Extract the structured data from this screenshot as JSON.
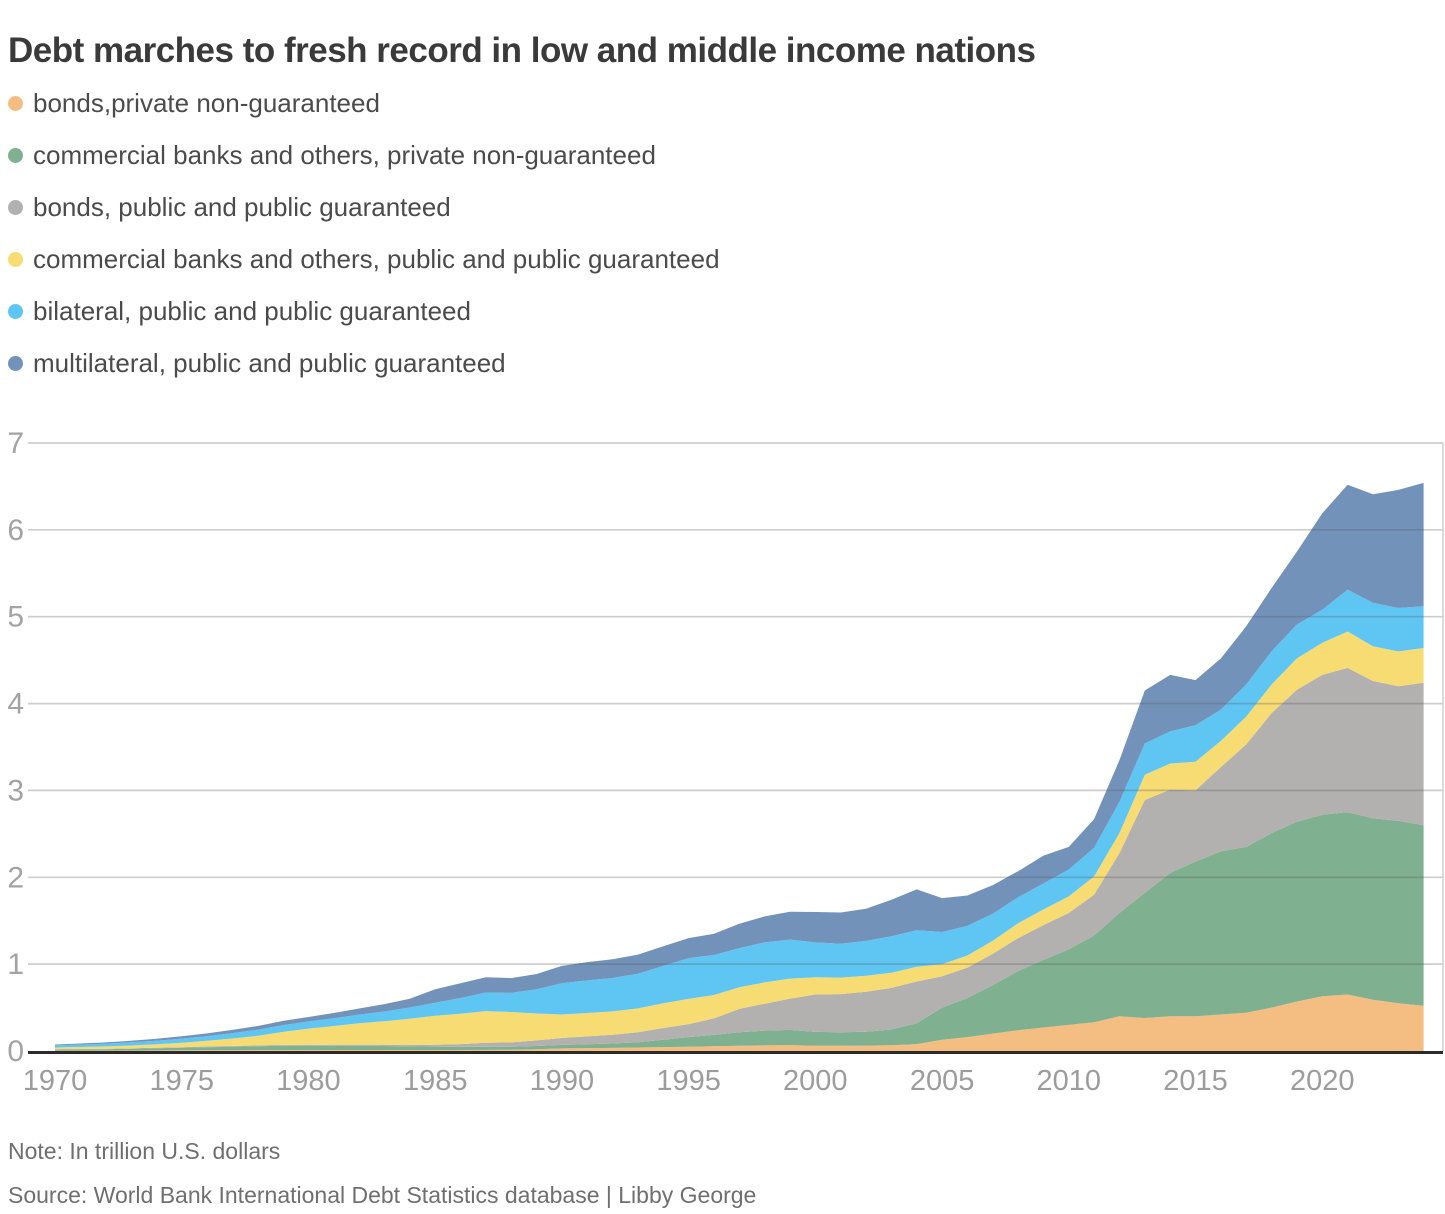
{
  "title": "Debt marches to fresh record in low and middle income nations",
  "legend": [
    {
      "label": "bonds,private non-guaranteed",
      "color": "#F4BE82"
    },
    {
      "label": "commercial banks and others, private non-guaranteed",
      "color": "#7FB090"
    },
    {
      "label": "bonds, public and public guaranteed",
      "color": "#B3B1AF"
    },
    {
      "label": "commercial banks and others, public and public guaranteed",
      "color": "#F7DC74"
    },
    {
      "label": "bilateral, public and public guaranteed",
      "color": "#5FC6F3"
    },
    {
      "label": "multilateral, public and public guaranteed",
      "color": "#7292BA"
    }
  ],
  "notes": {
    "note": "Note: In trillion U.S. dollars",
    "source": "Source: World Bank International Debt Statistics database | Libby George"
  },
  "chart_data": {
    "type": "area",
    "stacked": true,
    "title": "Debt marches to fresh record in low and middle income nations",
    "unit": "trillion U.S. dollars",
    "grid": true,
    "legend_position": "top-left",
    "ylim": [
      0,
      7
    ],
    "yticks": [
      0,
      1,
      2,
      3,
      4,
      5,
      6,
      7
    ],
    "xticks": [
      1970,
      1975,
      1980,
      1985,
      1990,
      1995,
      2000,
      2005,
      2010,
      2015,
      2020
    ],
    "years": [
      1970,
      1971,
      1972,
      1973,
      1974,
      1975,
      1976,
      1977,
      1978,
      1979,
      1980,
      1981,
      1982,
      1983,
      1984,
      1985,
      1986,
      1987,
      1988,
      1989,
      1990,
      1991,
      1992,
      1993,
      1994,
      1995,
      1996,
      1997,
      1998,
      1999,
      2000,
      2001,
      2002,
      2003,
      2004,
      2005,
      2006,
      2007,
      2008,
      2009,
      2010,
      2011,
      2012,
      2013,
      2014,
      2015,
      2016,
      2017,
      2018,
      2019,
      2020,
      2021,
      2022,
      2023,
      2024
    ],
    "series": [
      {
        "name": "bonds,private non-guaranteed",
        "color": "#F4BE82",
        "values": [
          0.004,
          0.005,
          0.005,
          0.006,
          0.007,
          0.008,
          0.009,
          0.01,
          0.01,
          0.01,
          0.01,
          0.011,
          0.012,
          0.012,
          0.011,
          0.011,
          0.012,
          0.013,
          0.014,
          0.02,
          0.03,
          0.033,
          0.036,
          0.04,
          0.045,
          0.05,
          0.055,
          0.06,
          0.065,
          0.068,
          0.06,
          0.06,
          0.062,
          0.067,
          0.08,
          0.13,
          0.16,
          0.2,
          0.24,
          0.27,
          0.3,
          0.33,
          0.4,
          0.38,
          0.4,
          0.4,
          0.42,
          0.44,
          0.5,
          0.57,
          0.63,
          0.65,
          0.59,
          0.55,
          0.52
        ]
      },
      {
        "name": "commercial banks and others, private non-guaranteed",
        "color": "#7FB090",
        "values": [
          0.012,
          0.014,
          0.016,
          0.02,
          0.024,
          0.03,
          0.035,
          0.04,
          0.045,
          0.05,
          0.052,
          0.05,
          0.048,
          0.045,
          0.042,
          0.04,
          0.038,
          0.036,
          0.035,
          0.037,
          0.04,
          0.045,
          0.05,
          0.06,
          0.085,
          0.11,
          0.13,
          0.155,
          0.17,
          0.175,
          0.16,
          0.155,
          0.16,
          0.18,
          0.24,
          0.37,
          0.45,
          0.56,
          0.68,
          0.78,
          0.87,
          1.0,
          1.19,
          1.44,
          1.65,
          1.78,
          1.88,
          1.91,
          2.01,
          2.07,
          2.09,
          2.1,
          2.09,
          2.1,
          2.08
        ]
      },
      {
        "name": "bonds, public and public guaranteed",
        "color": "#B3B1AF",
        "values": [
          0.004,
          0.004,
          0.005,
          0.005,
          0.006,
          0.007,
          0.008,
          0.009,
          0.01,
          0.01,
          0.011,
          0.012,
          0.014,
          0.016,
          0.018,
          0.02,
          0.03,
          0.045,
          0.05,
          0.065,
          0.08,
          0.09,
          0.1,
          0.115,
          0.135,
          0.15,
          0.19,
          0.27,
          0.31,
          0.36,
          0.43,
          0.44,
          0.46,
          0.48,
          0.48,
          0.36,
          0.35,
          0.36,
          0.38,
          0.4,
          0.42,
          0.47,
          0.69,
          1.07,
          0.96,
          0.82,
          0.97,
          1.18,
          1.38,
          1.52,
          1.61,
          1.66,
          1.58,
          1.55,
          1.64
        ]
      },
      {
        "name": "commercial banks and others, public and public guaranteed",
        "color": "#F7DC74",
        "values": [
          0.02,
          0.023,
          0.027,
          0.032,
          0.04,
          0.05,
          0.065,
          0.085,
          0.11,
          0.15,
          0.185,
          0.215,
          0.245,
          0.27,
          0.3,
          0.335,
          0.35,
          0.365,
          0.35,
          0.31,
          0.27,
          0.27,
          0.27,
          0.275,
          0.285,
          0.29,
          0.27,
          0.25,
          0.245,
          0.23,
          0.2,
          0.19,
          0.185,
          0.175,
          0.17,
          0.14,
          0.14,
          0.15,
          0.17,
          0.18,
          0.19,
          0.21,
          0.23,
          0.29,
          0.3,
          0.33,
          0.3,
          0.32,
          0.33,
          0.36,
          0.37,
          0.42,
          0.4,
          0.4,
          0.4
        ]
      },
      {
        "name": "bilateral, public and public guaranteed",
        "color": "#5FC6F3",
        "values": [
          0.025,
          0.028,
          0.032,
          0.037,
          0.042,
          0.048,
          0.055,
          0.062,
          0.07,
          0.078,
          0.082,
          0.09,
          0.1,
          0.112,
          0.13,
          0.15,
          0.18,
          0.215,
          0.22,
          0.28,
          0.36,
          0.375,
          0.385,
          0.4,
          0.43,
          0.47,
          0.46,
          0.45,
          0.46,
          0.45,
          0.4,
          0.39,
          0.4,
          0.42,
          0.42,
          0.37,
          0.34,
          0.31,
          0.3,
          0.3,
          0.31,
          0.33,
          0.36,
          0.36,
          0.37,
          0.42,
          0.36,
          0.37,
          0.38,
          0.39,
          0.38,
          0.48,
          0.5,
          0.5,
          0.48
        ]
      },
      {
        "name": "multilateral, public and public guaranteed",
        "color": "#7292BA",
        "values": [
          0.01,
          0.012,
          0.014,
          0.017,
          0.021,
          0.026,
          0.031,
          0.037,
          0.043,
          0.048,
          0.052,
          0.06,
          0.07,
          0.085,
          0.1,
          0.155,
          0.17,
          0.175,
          0.17,
          0.175,
          0.2,
          0.21,
          0.215,
          0.22,
          0.225,
          0.23,
          0.245,
          0.28,
          0.3,
          0.32,
          0.35,
          0.36,
          0.37,
          0.42,
          0.47,
          0.39,
          0.35,
          0.33,
          0.3,
          0.32,
          0.26,
          0.33,
          0.48,
          0.61,
          0.65,
          0.52,
          0.59,
          0.67,
          0.73,
          0.84,
          1.11,
          1.21,
          1.25,
          1.36,
          1.42
        ]
      }
    ]
  },
  "style": {
    "grid_color": "rgba(90,90,90,0.30)",
    "baseline_color": "#2b2b2b",
    "ytick_color": "#a3a3a3",
    "xtick_color": "#9c9c9c",
    "right_border_color": "#cfcfcf"
  }
}
